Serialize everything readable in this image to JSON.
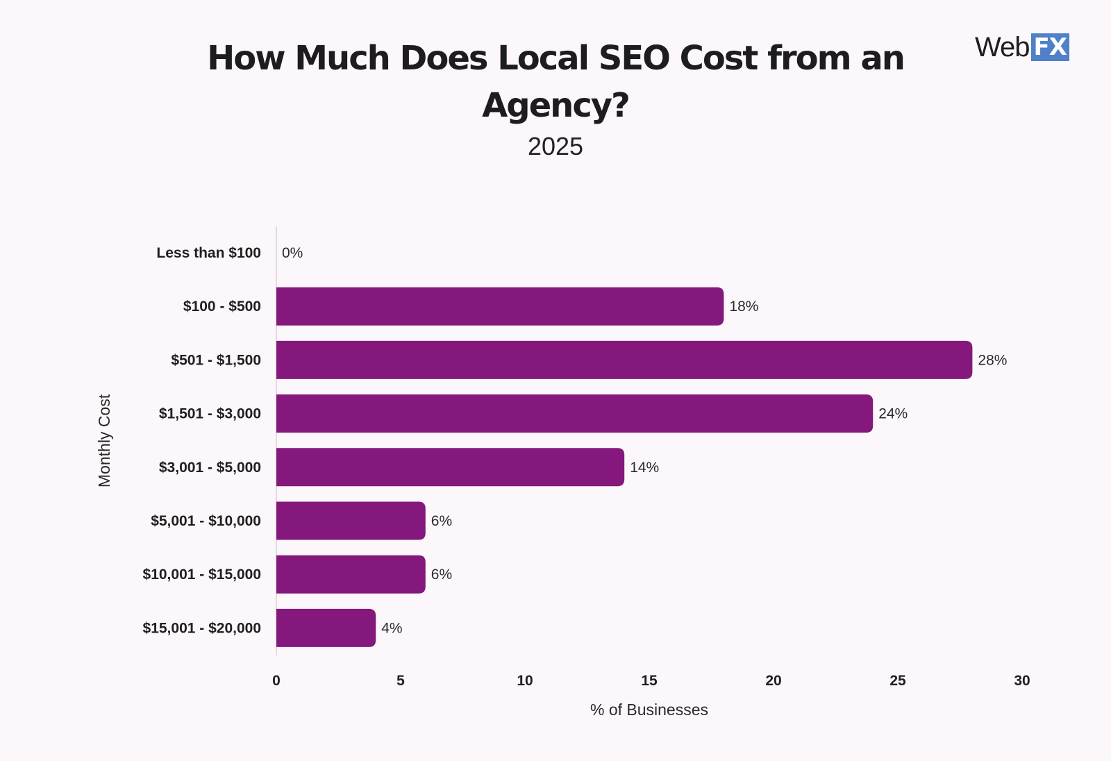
{
  "logo": {
    "web_text": "Web",
    "fx_text": "FX",
    "fx_color": "#4f80c8"
  },
  "chart_data": {
    "type": "bar",
    "orientation": "horizontal",
    "title": "How Much Does Local SEO Cost from an Agency?",
    "subtitle": "2025",
    "xlabel": "% of Businesses",
    "ylabel": "Monthly Cost",
    "xlim": [
      0,
      30
    ],
    "x_ticks": [
      0,
      5,
      10,
      15,
      20,
      25,
      30
    ],
    "categories": [
      "Less than $100",
      "$100 - $500",
      "$501 - $1,500",
      "$1,501 - $3,000",
      "$3,001 - $5,000",
      "$5,001 - $10,000",
      "$10,001 - $15,000",
      "$15,001 - $20,000"
    ],
    "values": [
      0,
      18,
      28,
      24,
      14,
      6,
      6,
      4
    ],
    "value_labels": [
      "0%",
      "18%",
      "28%",
      "24%",
      "14%",
      "6%",
      "6%",
      "4%"
    ],
    "bar_color": "#84187c",
    "grid": false,
    "legend": "none"
  }
}
